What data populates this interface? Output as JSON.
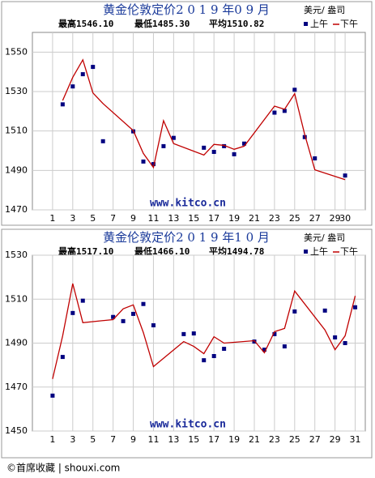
{
  "chart_data": [
    {
      "type": "line",
      "title": "黄金伦敦定价2 0 1 9 年0 9 月",
      "unit": "美元/ 盎司",
      "stats": [
        "最高1546.10",
        "最低1485.30",
        "平均1510.82"
      ],
      "watermark": "www.kitco.cn",
      "x": [
        2,
        3,
        4,
        5,
        6,
        9,
        10,
        11,
        12,
        13,
        16,
        17,
        18,
        19,
        20,
        23,
        24,
        25,
        26,
        27,
        30
      ],
      "series": [
        {
          "name": "上午",
          "color": "#000080",
          "marker": "square",
          "values": [
            1523.5,
            1532.6,
            1538.8,
            1542.5,
            1504.8,
            1509.8,
            1494.5,
            1493.2,
            1502.3,
            1506.5,
            1501.5,
            1499.4,
            1502.3,
            1498.2,
            1503.6,
            1519.3,
            1520.2,
            1530.9,
            1506.9,
            1496.1,
            1487.4
          ]
        },
        {
          "name": "下午",
          "color": "#c00000",
          "marker": "line",
          "values": [
            1525.5,
            1537.2,
            1546.1,
            1529.3,
            1523.9,
            1510.2,
            1498.6,
            1491.5,
            1515.2,
            1503.6,
            1497.8,
            1503.2,
            1502.7,
            1500.7,
            1502.3,
            1522.6,
            1521.0,
            1528.9,
            1508.1,
            1490.3,
            1485.3
          ]
        }
      ],
      "xlim": [
        -1,
        32
      ],
      "xticks": [
        1,
        3,
        5,
        7,
        9,
        11,
        13,
        15,
        17,
        19,
        21,
        23,
        25,
        27,
        29,
        30
      ],
      "ylim": [
        1470,
        1560
      ],
      "yticks": [
        1470,
        1490,
        1510,
        1530,
        1550
      ],
      "grid": true
    },
    {
      "type": "line",
      "title": "黄金伦敦定价2 0 1 9 年1 0 月",
      "unit": "美元/ 盎司",
      "stats": [
        "最高1517.10",
        "最低1466.10",
        "平均1494.78"
      ],
      "watermark": "www.kitco.cn",
      "x": [
        1,
        2,
        3,
        4,
        7,
        8,
        9,
        10,
        11,
        14,
        15,
        16,
        17,
        18,
        21,
        22,
        23,
        24,
        25,
        28,
        29,
        30,
        31
      ],
      "series": [
        {
          "name": "上午",
          "color": "#000080",
          "marker": "square",
          "values": [
            1466.1,
            1483.7,
            1503.7,
            1509.3,
            1501.9,
            1500.0,
            1503.3,
            1507.8,
            1498.1,
            1494.1,
            1494.4,
            1482.2,
            1484.1,
            1487.4,
            1490.7,
            1487.0,
            1494.1,
            1488.5,
            1504.4,
            1504.8,
            1492.6,
            1490.0,
            1506.3
          ]
        },
        {
          "name": "下午",
          "color": "#c00000",
          "marker": "line",
          "values": [
            1473.7,
            1493.3,
            1517.1,
            1499.3,
            1500.7,
            1505.6,
            1507.4,
            1494.8,
            1479.3,
            1490.7,
            1488.5,
            1485.2,
            1492.9,
            1490.0,
            1491.1,
            1485.6,
            1495.2,
            1496.7,
            1513.7,
            1496.0,
            1487.0,
            1493.3,
            1511.5
          ]
        }
      ],
      "xlim": [
        -1,
        32
      ],
      "xticks": [
        1,
        3,
        5,
        7,
        9,
        11,
        13,
        15,
        17,
        19,
        21,
        23,
        25,
        27,
        29,
        31
      ],
      "ylim": [
        1450,
        1530
      ],
      "yticks": [
        1450,
        1470,
        1490,
        1510,
        1530
      ],
      "grid": true
    }
  ],
  "footer": "©首席收藏 | shouxi.com"
}
